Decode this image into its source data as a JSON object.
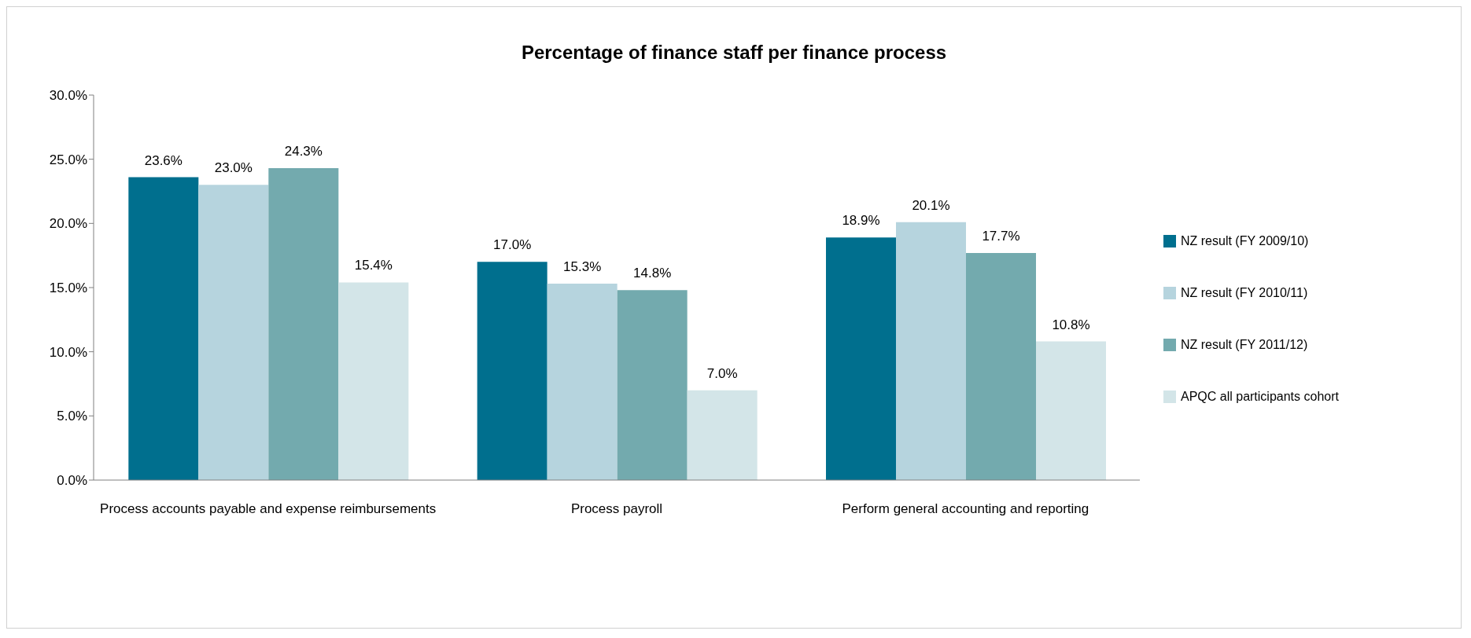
{
  "chart_data": {
    "type": "bar",
    "title": "Percentage of finance staff per finance process",
    "categories": [
      "Process accounts payable and expense reimbursements",
      "Process payroll",
      "Perform general accounting and reporting"
    ],
    "series": [
      {
        "name": "NZ result (FY 2009/10)",
        "color": "#006f8e",
        "values": [
          23.6,
          17.0,
          18.9
        ],
        "value_labels": [
          "23.6%",
          "17.0%",
          "18.9%"
        ]
      },
      {
        "name": "NZ result (FY 2010/11)",
        "color": "#b6d4de",
        "values": [
          23.0,
          15.3,
          20.1
        ],
        "value_labels": [
          "23.0%",
          "15.3%",
          "20.1%"
        ]
      },
      {
        "name": "NZ result (FY 2011/12)",
        "color": "#73aaae",
        "values": [
          24.3,
          14.8,
          17.7
        ],
        "value_labels": [
          "24.3%",
          "14.8%",
          "17.7%"
        ]
      },
      {
        "name": "APQC all participants cohort",
        "color": "#d3e5e8",
        "values": [
          15.4,
          7.0,
          10.8
        ],
        "value_labels": [
          "15.4%",
          "7.0%",
          "10.8%"
        ]
      }
    ],
    "ylim": [
      0,
      30
    ],
    "yticks": [
      {
        "value": 0,
        "label": "0.0%"
      },
      {
        "value": 5,
        "label": "5.0%"
      },
      {
        "value": 10,
        "label": "10.0%"
      },
      {
        "value": 15,
        "label": "15.0%"
      },
      {
        "value": 20,
        "label": "20.0%"
      },
      {
        "value": 25,
        "label": "25.0%"
      },
      {
        "value": 30,
        "label": "30.0%"
      }
    ],
    "grid": false,
    "legend": "right"
  }
}
